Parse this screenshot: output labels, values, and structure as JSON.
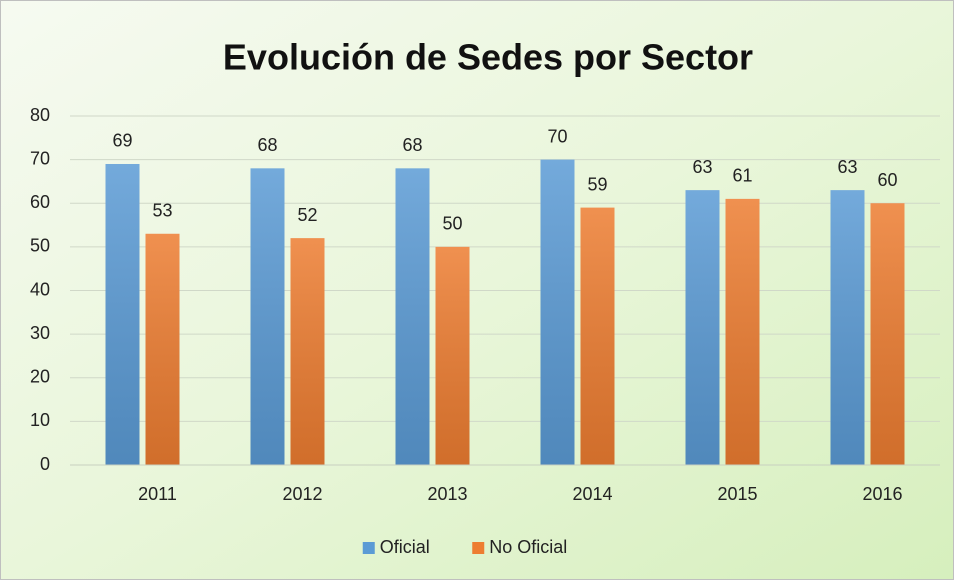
{
  "chart_data": {
    "type": "bar",
    "title": "Evolución de Sedes por Sector",
    "categories": [
      "2011",
      "2012",
      "2013",
      "2014",
      "2015",
      "2016"
    ],
    "series": [
      {
        "name": "Oficial",
        "color": "#5b9bd5",
        "values": [
          69,
          68,
          68,
          70,
          63,
          63
        ]
      },
      {
        "name": "No Oficial",
        "color": "#ed7d31",
        "values": [
          53,
          52,
          50,
          59,
          61,
          60
        ]
      }
    ],
    "ylim": [
      0,
      80
    ],
    "yticks": [
      0,
      10,
      20,
      30,
      40,
      50,
      60,
      70,
      80
    ],
    "grid": true,
    "legend": "bottom"
  }
}
